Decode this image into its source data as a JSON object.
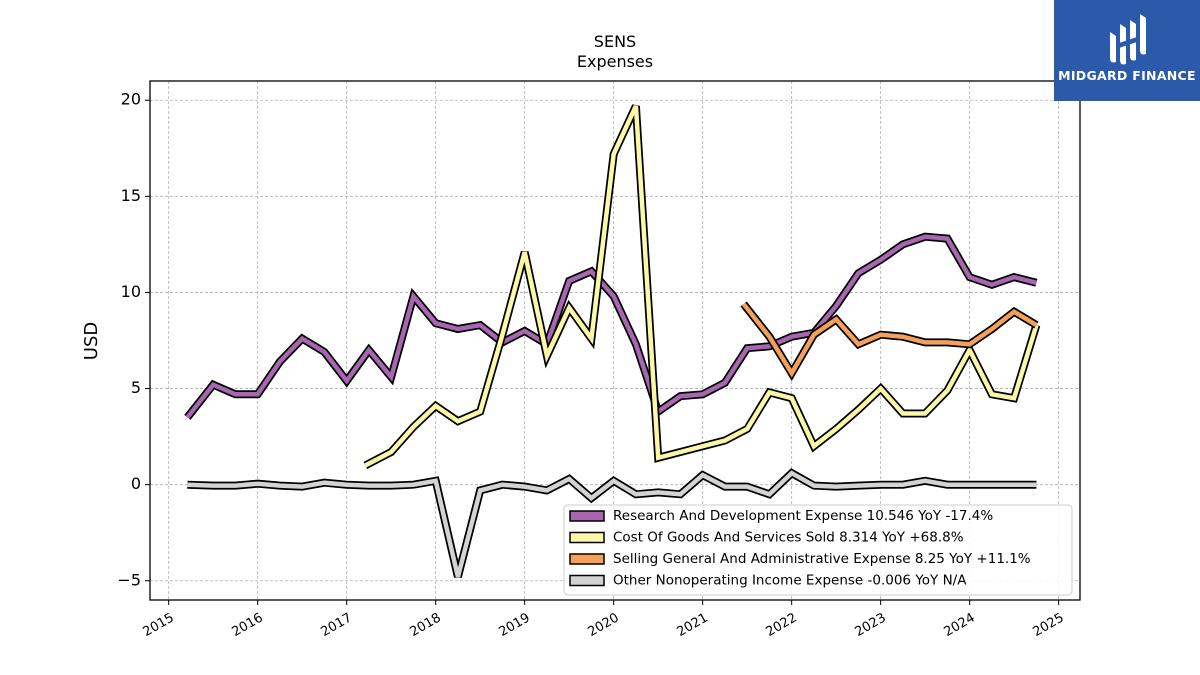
{
  "chart_data": {
    "type": "line",
    "title": "SENS",
    "subtitle": "Expenses",
    "ylabel": "USD",
    "xlabel": "",
    "ylim": [
      -6,
      21
    ],
    "xlim": [
      2014.79,
      2025.24
    ],
    "y_ticks": [
      -5,
      0,
      5,
      10,
      15,
      20
    ],
    "y_tick_labels": [
      "−5",
      "0",
      "5",
      "10",
      "15",
      "20"
    ],
    "x_ticks": [
      2015,
      2016,
      2017,
      2018,
      2019,
      2020,
      2021,
      2022,
      2023,
      2024,
      2025
    ],
    "x_tick_labels": [
      "2015",
      "2016",
      "2017",
      "2018",
      "2019",
      "2020",
      "2021",
      "2022",
      "2023",
      "2024",
      "2025"
    ],
    "grid": true,
    "legend_position": "bottom-right",
    "series": [
      {
        "name": "Research And Development Expense  10.546 YoY -17.4%",
        "color": "#a866b0",
        "points": [
          [
            2015.21,
            3.5
          ],
          [
            2015.5,
            5.2
          ],
          [
            2015.75,
            4.7
          ],
          [
            2016.0,
            4.7
          ],
          [
            2016.25,
            6.4
          ],
          [
            2016.5,
            7.6
          ],
          [
            2016.75,
            6.9
          ],
          [
            2017.0,
            5.4
          ],
          [
            2017.25,
            7.0
          ],
          [
            2017.5,
            5.6
          ],
          [
            2017.75,
            9.8
          ],
          [
            2018.0,
            8.4
          ],
          [
            2018.25,
            8.1
          ],
          [
            2018.5,
            8.3
          ],
          [
            2018.75,
            7.4
          ],
          [
            2019.0,
            8.0
          ],
          [
            2019.25,
            7.3
          ],
          [
            2019.5,
            10.6
          ],
          [
            2019.75,
            11.1
          ],
          [
            2020.0,
            9.8
          ],
          [
            2020.25,
            7.3
          ],
          [
            2020.5,
            3.8
          ],
          [
            2020.75,
            4.6
          ],
          [
            2021.0,
            4.7
          ],
          [
            2021.25,
            5.3
          ],
          [
            2021.5,
            7.1
          ],
          [
            2021.75,
            7.2
          ],
          [
            2022.0,
            7.7
          ],
          [
            2022.25,
            7.9
          ],
          [
            2022.5,
            9.3
          ],
          [
            2022.75,
            11.0
          ],
          [
            2023.0,
            11.7
          ],
          [
            2023.25,
            12.5
          ],
          [
            2023.5,
            12.9
          ],
          [
            2023.75,
            12.8
          ],
          [
            2024.0,
            10.8
          ],
          [
            2024.25,
            10.4
          ],
          [
            2024.5,
            10.8
          ],
          [
            2024.75,
            10.5
          ]
        ]
      },
      {
        "name": "Cost Of Goods And Services Sold  8.314 YoY +68.8%",
        "color": "#fbf8a7",
        "points": [
          [
            2017.21,
            1.0
          ],
          [
            2017.5,
            1.7
          ],
          [
            2017.75,
            3.0
          ],
          [
            2018.0,
            4.1
          ],
          [
            2018.25,
            3.3
          ],
          [
            2018.5,
            3.8
          ],
          [
            2018.75,
            7.8
          ],
          [
            2019.0,
            12.1
          ],
          [
            2019.25,
            6.7
          ],
          [
            2019.5,
            9.2
          ],
          [
            2019.75,
            7.6
          ],
          [
            2020.0,
            17.2
          ],
          [
            2020.25,
            19.7
          ],
          [
            2020.5,
            1.4
          ],
          [
            2020.75,
            1.7
          ],
          [
            2021.0,
            2.0
          ],
          [
            2021.25,
            2.3
          ],
          [
            2021.5,
            2.9
          ],
          [
            2021.75,
            4.8
          ],
          [
            2022.0,
            4.5
          ],
          [
            2022.25,
            2.0
          ],
          [
            2022.5,
            2.9
          ],
          [
            2022.75,
            3.9
          ],
          [
            2023.0,
            5.0
          ],
          [
            2023.25,
            3.7
          ],
          [
            2023.5,
            3.7
          ],
          [
            2023.75,
            4.9
          ],
          [
            2024.0,
            7.0
          ],
          [
            2024.25,
            4.7
          ],
          [
            2024.5,
            4.5
          ],
          [
            2024.75,
            8.3
          ]
        ]
      },
      {
        "name": "Selling General And Administrative Expense  8.25 YoY +11.1%",
        "color": "#f4a05a",
        "points": [
          [
            2021.46,
            9.4
          ],
          [
            2021.75,
            7.7
          ],
          [
            2022.0,
            5.8
          ],
          [
            2022.25,
            7.8
          ],
          [
            2022.5,
            8.6
          ],
          [
            2022.75,
            7.3
          ],
          [
            2023.0,
            7.8
          ],
          [
            2023.25,
            7.7
          ],
          [
            2023.5,
            7.4
          ],
          [
            2023.75,
            7.4
          ],
          [
            2024.0,
            7.3
          ],
          [
            2024.25,
            8.1
          ],
          [
            2024.5,
            9.0
          ],
          [
            2024.75,
            8.3
          ]
        ]
      },
      {
        "name": "Other Nonoperating Income Expense  -0.006 YoY N/A",
        "color": "#d3d3d3",
        "points": [
          [
            2015.21,
            0.0
          ],
          [
            2015.5,
            -0.05
          ],
          [
            2015.75,
            -0.05
          ],
          [
            2016.0,
            0.05
          ],
          [
            2016.25,
            -0.05
          ],
          [
            2016.5,
            -0.1
          ],
          [
            2016.75,
            0.1
          ],
          [
            2017.0,
            0.0
          ],
          [
            2017.25,
            -0.05
          ],
          [
            2017.5,
            -0.05
          ],
          [
            2017.75,
            0.0
          ],
          [
            2018.0,
            0.2
          ],
          [
            2018.25,
            -4.8
          ],
          [
            2018.5,
            -0.3
          ],
          [
            2018.75,
            0.0
          ],
          [
            2019.0,
            -0.1
          ],
          [
            2019.25,
            -0.3
          ],
          [
            2019.5,
            0.3
          ],
          [
            2019.75,
            -0.7
          ],
          [
            2020.0,
            0.2
          ],
          [
            2020.25,
            -0.5
          ],
          [
            2020.5,
            -0.4
          ],
          [
            2020.75,
            -0.5
          ],
          [
            2021.0,
            0.5
          ],
          [
            2021.25,
            -0.1
          ],
          [
            2021.5,
            -0.1
          ],
          [
            2021.75,
            -0.5
          ],
          [
            2022.0,
            0.6
          ],
          [
            2022.25,
            -0.05
          ],
          [
            2022.5,
            -0.1
          ],
          [
            2022.75,
            -0.05
          ],
          [
            2023.0,
            0.0
          ],
          [
            2023.25,
            0.0
          ],
          [
            2023.5,
            0.2
          ],
          [
            2023.75,
            0.0
          ],
          [
            2024.0,
            0.0
          ],
          [
            2024.25,
            0.0
          ],
          [
            2024.5,
            0.0
          ],
          [
            2024.75,
            -0.006
          ]
        ]
      }
    ]
  },
  "logo": {
    "text": "MIDGARD FINANCE",
    "icon": "midgard-logo-icon"
  }
}
